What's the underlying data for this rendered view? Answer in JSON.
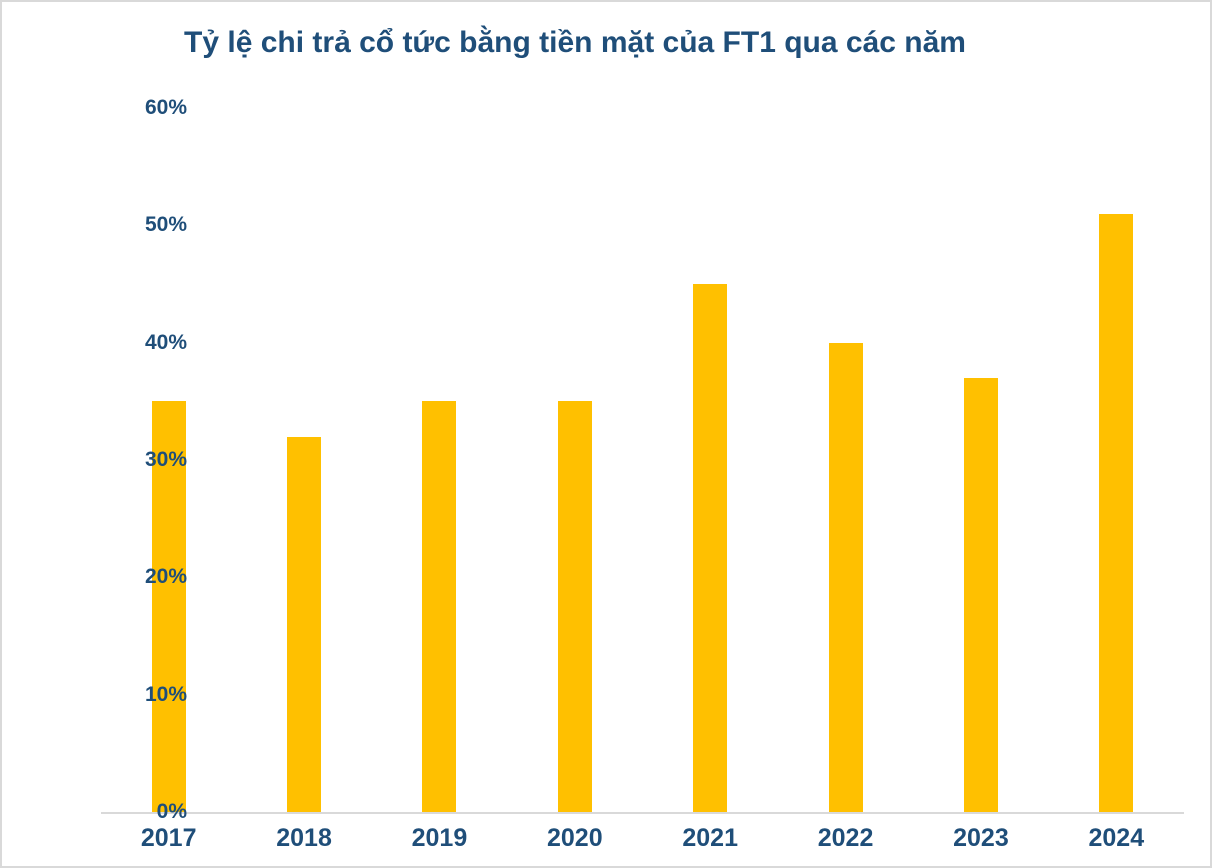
{
  "page": {
    "background": "#ffffff",
    "border_color": "#d9d9d9"
  },
  "chart_data": {
    "type": "bar",
    "title": "Tỷ lệ chi trả cổ tức bằng tiền mặt của FT1 qua các năm",
    "categories": [
      "2017",
      "2018",
      "2019",
      "2020",
      "2021",
      "2022",
      "2023",
      "2024"
    ],
    "values": [
      35,
      32,
      35,
      35,
      45,
      40,
      37,
      51
    ],
    "unit": "%",
    "xlabel": "",
    "ylabel": "",
    "ylim": [
      0,
      60
    ],
    "ytick_labels": [
      "60%",
      "50%",
      "40%",
      "30%",
      "20%",
      "10%",
      "0%"
    ],
    "grid": false,
    "legend": "none",
    "bar_color": "#ffc000",
    "text_color": "#1f4e79",
    "axis_line_color": "#d9d9d9"
  }
}
